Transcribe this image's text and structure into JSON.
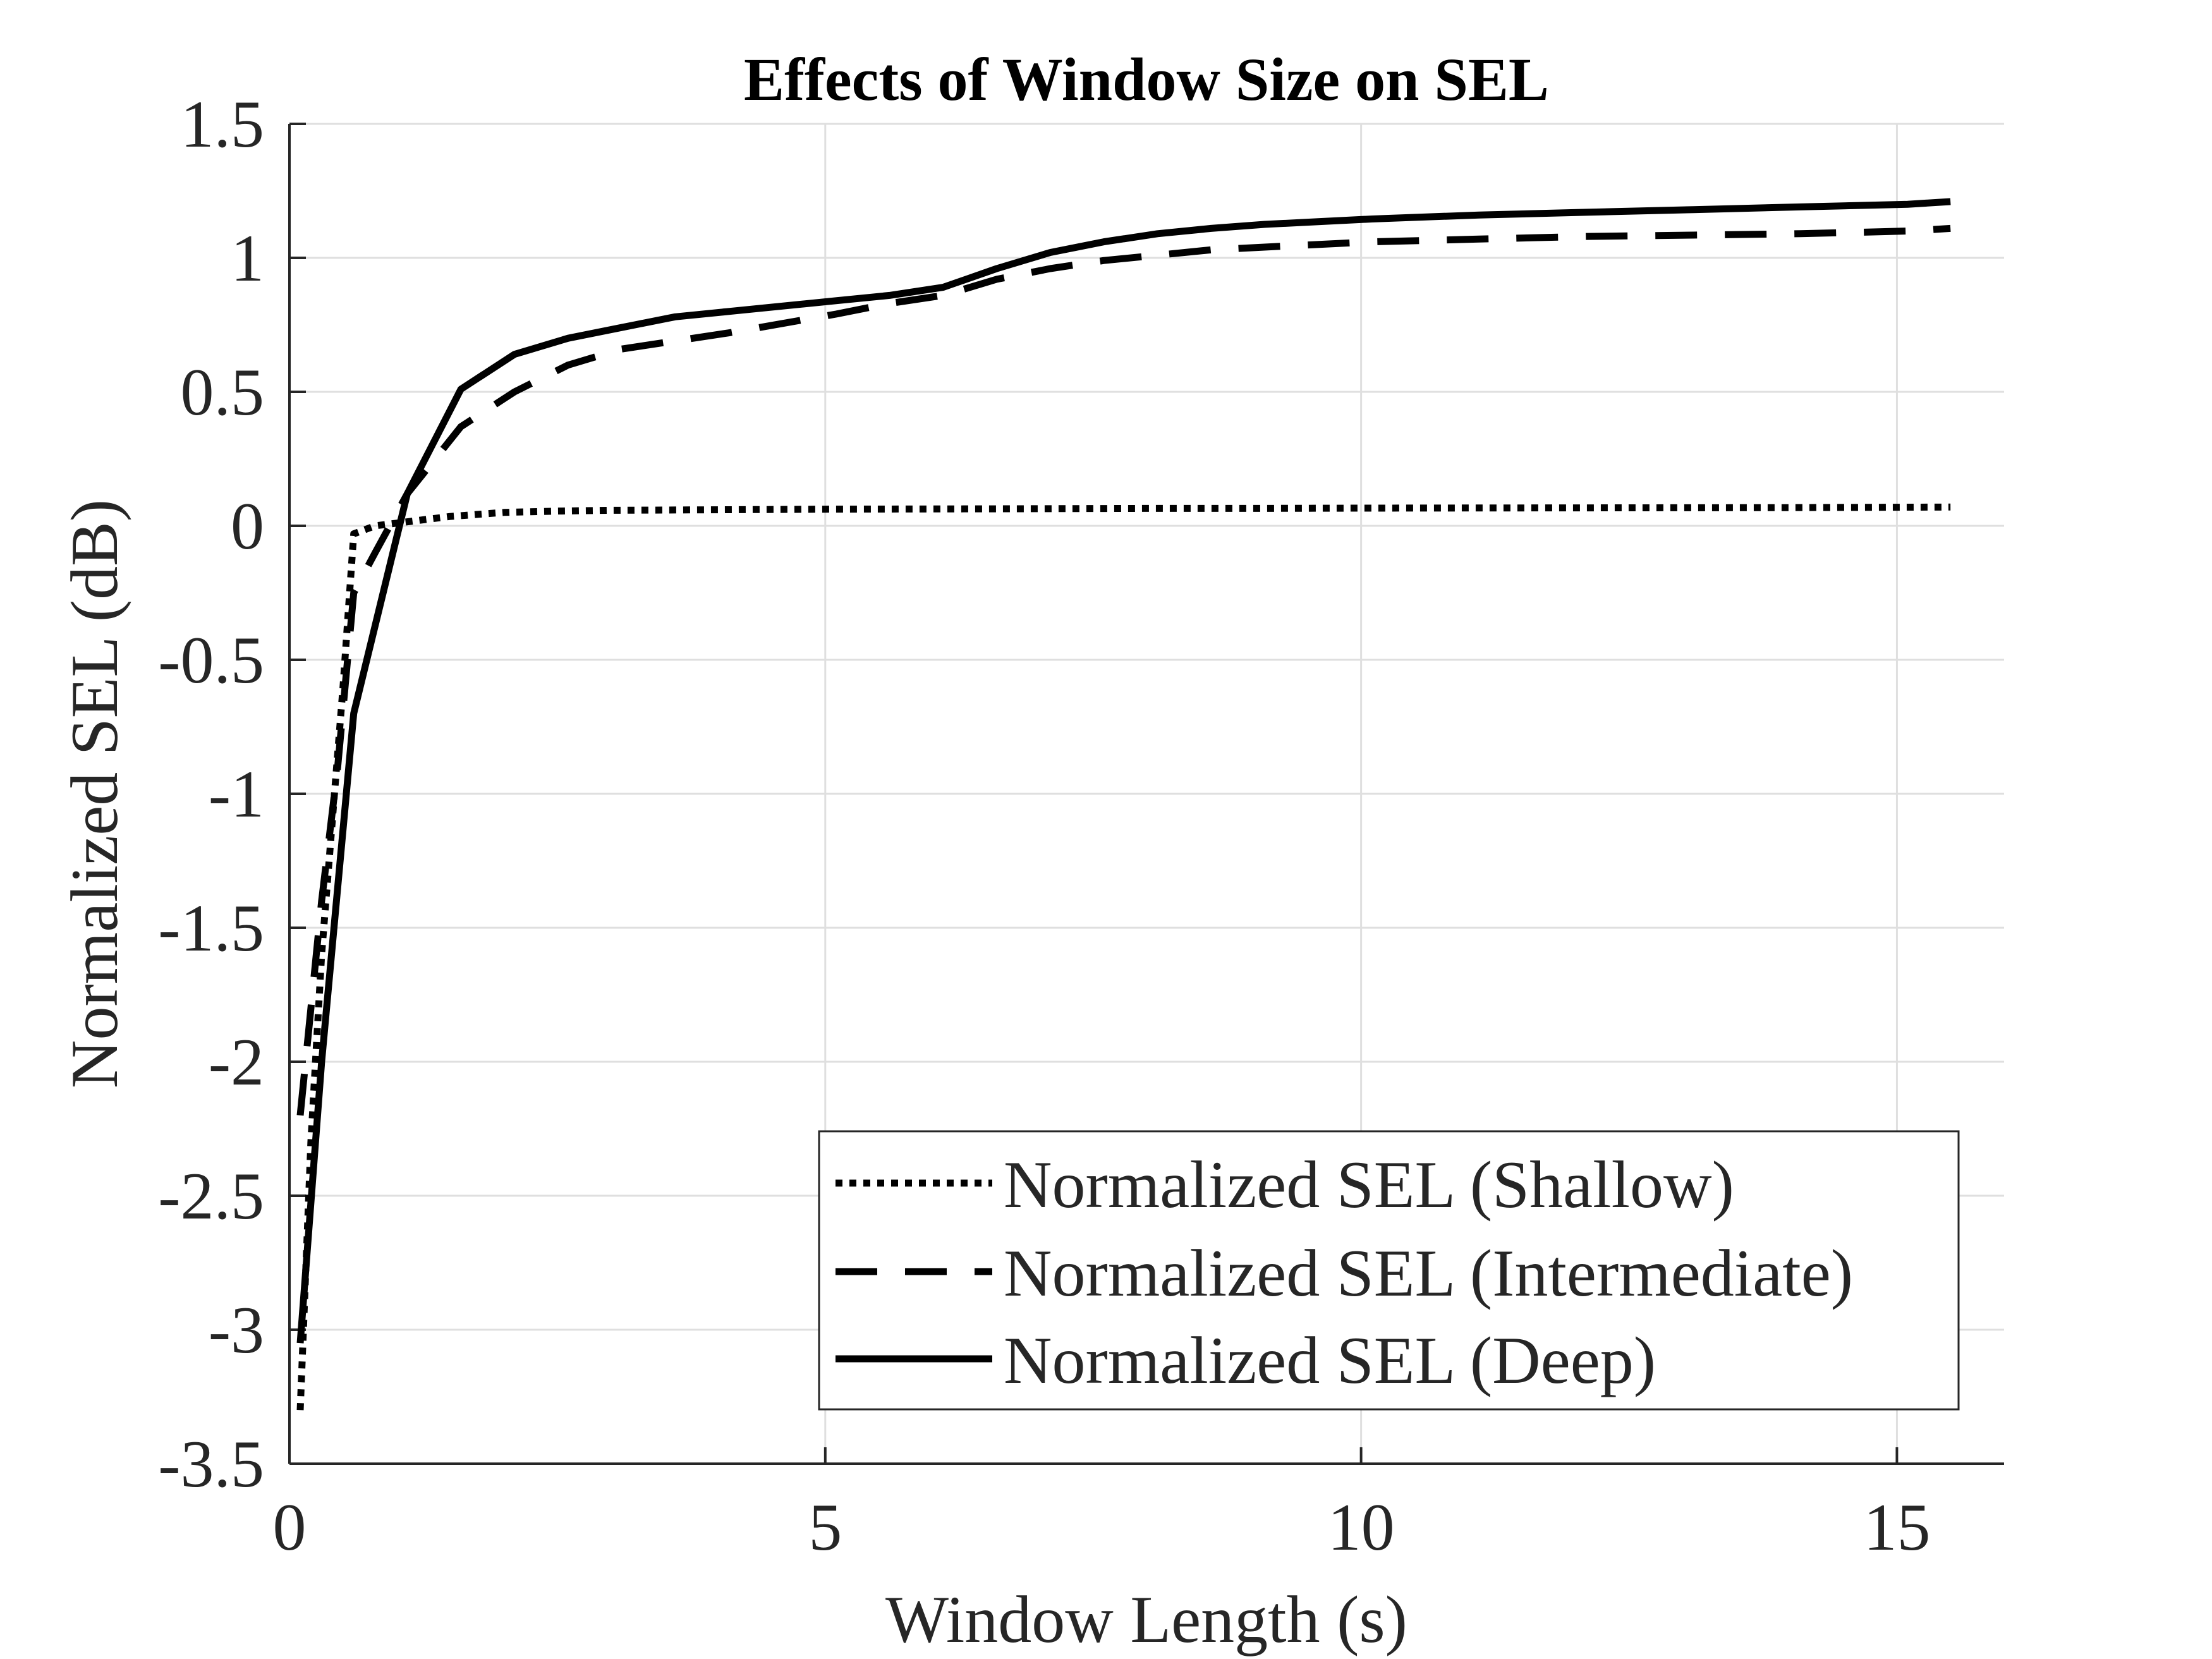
{
  "chart_data": {
    "type": "line",
    "title": "Effects of Window Size on SEL",
    "xlabel": "Window Length (s)",
    "ylabel": "Normalized SEL (dB)",
    "xlim": [
      0,
      16
    ],
    "ylim": [
      -3.5,
      1.5
    ],
    "xticks": [
      0,
      5,
      10,
      15
    ],
    "xtick_labels": [
      "0",
      "5",
      "10",
      "15"
    ],
    "yticks": [
      1.5,
      1,
      0.5,
      0,
      -0.5,
      -1,
      -1.5,
      -2,
      -2.5,
      -3,
      -3.5
    ],
    "ytick_labels": [
      "1.5",
      "1",
      "0.5",
      "0",
      "-0.5",
      "-1",
      "-1.5",
      "-2",
      "-2.5",
      "-3",
      "-3.5"
    ],
    "grid": true,
    "legend_position": "bottom-right",
    "series": [
      {
        "name": "Normalized SEL (Shallow)",
        "style": "dotted",
        "color": "#000000",
        "x": [
          0.1,
          0.2,
          0.3,
          0.4,
          0.5,
          0.6,
          0.8,
          1.0,
          1.2,
          1.5,
          2.0,
          2.5,
          3.0,
          4.0,
          5.0,
          6.0,
          7.0,
          8.0,
          9.0,
          10.0,
          12.0,
          14.0,
          15.5
        ],
        "y": [
          -3.3,
          -2.3,
          -1.6,
          -1.1,
          -0.6,
          -0.03,
          0.0,
          0.01,
          0.02,
          0.035,
          0.05,
          0.055,
          0.058,
          0.06,
          0.062,
          0.063,
          0.064,
          0.065,
          0.065,
          0.066,
          0.067,
          0.068,
          0.07
        ]
      },
      {
        "name": "Normalized SEL (Intermediate)",
        "style": "dashed",
        "color": "#000000",
        "x": [
          0.1,
          0.3,
          0.45,
          0.6,
          0.8,
          1.1,
          1.6,
          2.1,
          2.6,
          3.1,
          4.1,
          5.1,
          5.6,
          6.1,
          6.6,
          7.1,
          7.6,
          8.1,
          8.6,
          9.1,
          10.1,
          11.1,
          12.1,
          13.1,
          14.1,
          15.1,
          15.5
        ],
        "y": [
          -2.2,
          -1.4,
          -0.9,
          -0.25,
          -0.1,
          0.12,
          0.37,
          0.5,
          0.6,
          0.66,
          0.72,
          0.79,
          0.83,
          0.86,
          0.92,
          0.96,
          0.99,
          1.01,
          1.03,
          1.04,
          1.06,
          1.07,
          1.08,
          1.085,
          1.09,
          1.1,
          1.11
        ]
      },
      {
        "name": "Normalized SEL (Deep)",
        "style": "solid",
        "color": "#000000",
        "x": [
          0.1,
          0.3,
          0.6,
          1.1,
          1.6,
          2.1,
          2.6,
          3.1,
          3.6,
          4.1,
          5.1,
          5.6,
          6.1,
          6.6,
          7.1,
          7.6,
          8.1,
          8.6,
          9.1,
          9.6,
          10.1,
          11.1,
          12.1,
          13.1,
          14.1,
          15.1,
          15.5
        ],
        "y": [
          -3.05,
          -2.0,
          -0.7,
          0.12,
          0.51,
          0.64,
          0.7,
          0.74,
          0.78,
          0.8,
          0.84,
          0.86,
          0.89,
          0.96,
          1.02,
          1.06,
          1.09,
          1.11,
          1.125,
          1.135,
          1.145,
          1.16,
          1.17,
          1.18,
          1.19,
          1.2,
          1.21
        ]
      }
    ]
  }
}
